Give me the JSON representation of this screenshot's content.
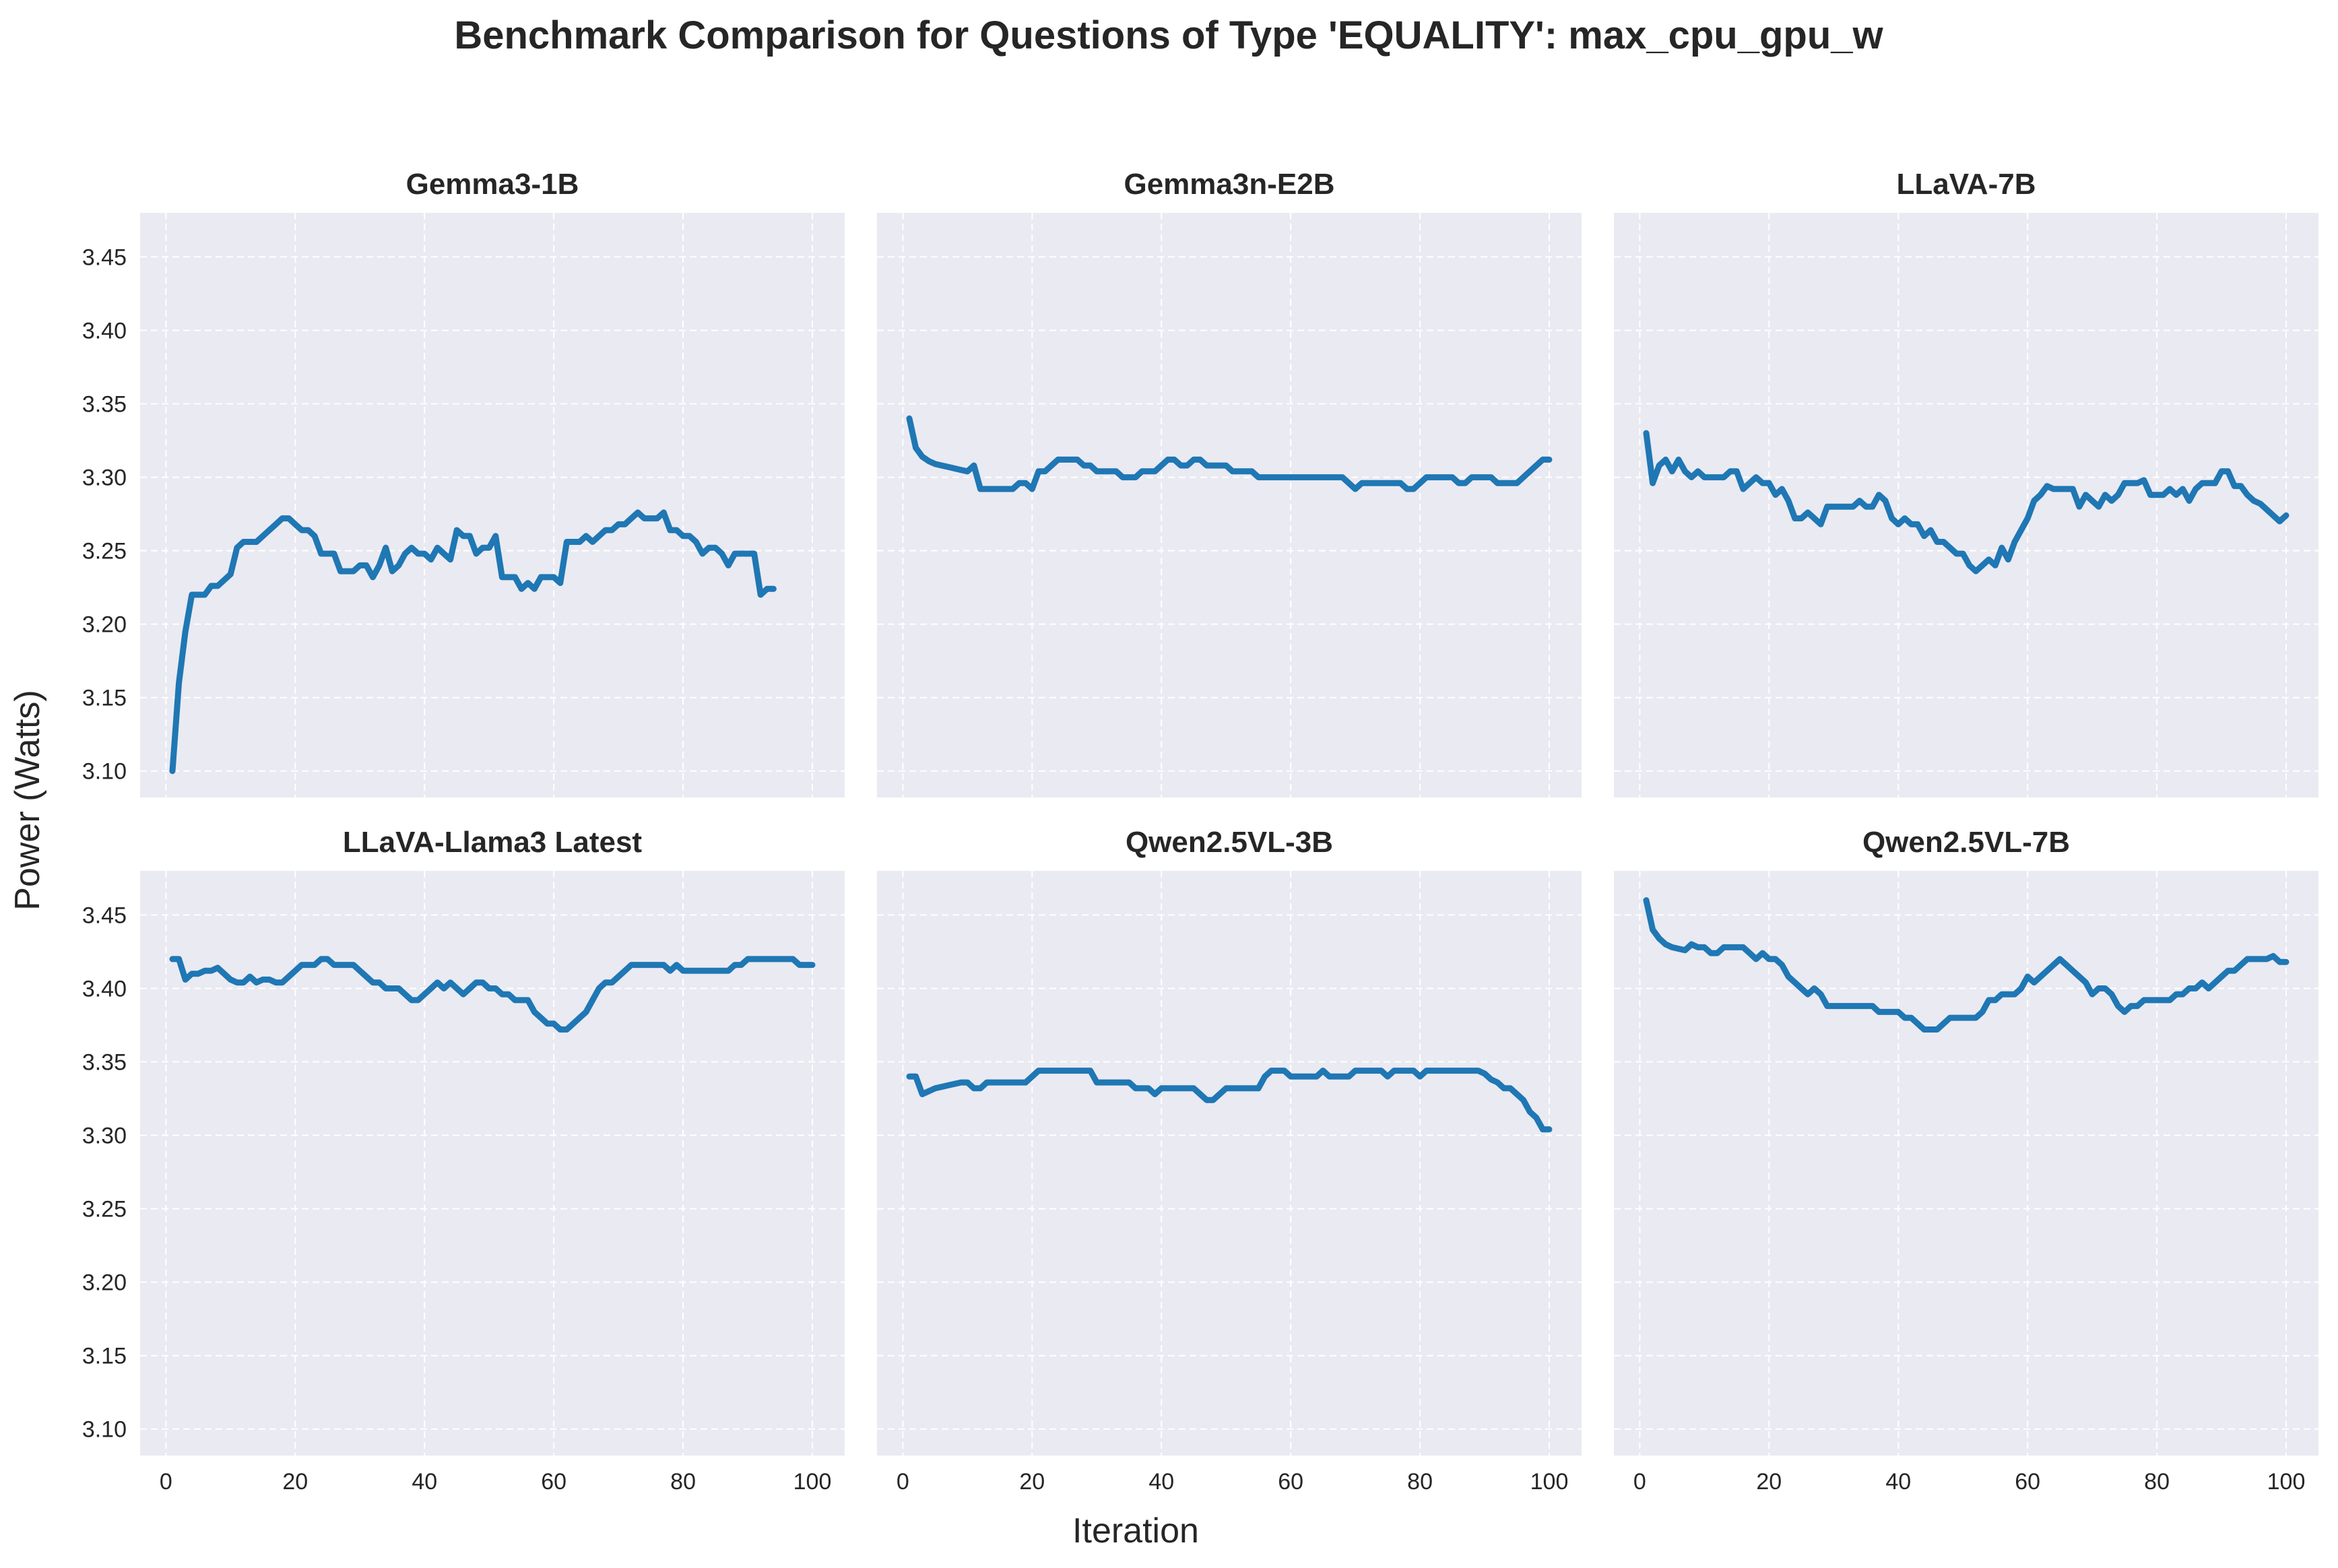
{
  "figure": {
    "title": "Benchmark Comparison for Questions of Type 'EQUALITY': max_cpu_gpu_w",
    "xlabel": "Iteration",
    "ylabel": "Power (Watts)"
  },
  "chart_data": {
    "type": "line",
    "shared_y": true,
    "shared_x": true,
    "ylim": [
      3.082,
      3.48
    ],
    "xlim": [
      -4,
      105
    ],
    "yticks": [
      "3.10",
      "3.15",
      "3.20",
      "3.25",
      "3.30",
      "3.35",
      "3.40",
      "3.45"
    ],
    "xticks": [
      "0",
      "20",
      "40",
      "60",
      "80",
      "100"
    ],
    "grid": true,
    "line_color": "#1f77b4",
    "panel_background": "#eaeaf2",
    "panels": [
      {
        "title": "Gemma3-1B",
        "x": [
          1,
          2,
          3,
          4,
          5,
          6,
          7,
          8,
          9,
          10,
          11,
          12,
          13,
          14,
          15,
          16,
          17,
          18,
          19,
          20,
          21,
          22,
          23,
          24,
          25,
          26,
          27,
          28,
          29,
          30,
          31,
          32,
          33,
          34,
          35,
          36,
          37,
          38,
          39,
          40,
          41,
          42,
          43,
          44,
          45,
          46,
          47,
          48,
          49,
          50,
          51,
          52,
          53,
          54,
          55,
          56,
          57,
          58,
          59,
          60,
          61,
          62,
          63,
          64,
          65,
          66,
          67,
          68,
          69,
          70,
          71,
          72,
          73,
          74,
          75,
          76,
          77,
          78,
          79,
          80,
          81,
          82,
          83,
          84,
          85,
          86,
          87,
          88,
          89,
          90,
          91,
          92,
          93,
          94
        ],
        "y": [
          3.1,
          3.16,
          3.195,
          3.22,
          3.22,
          3.22,
          3.226,
          3.226,
          3.23,
          3.234,
          3.252,
          3.256,
          3.256,
          3.256,
          3.26,
          3.264,
          3.268,
          3.272,
          3.272,
          3.268,
          3.264,
          3.264,
          3.26,
          3.248,
          3.248,
          3.248,
          3.236,
          3.236,
          3.236,
          3.24,
          3.24,
          3.232,
          3.24,
          3.252,
          3.236,
          3.24,
          3.248,
          3.252,
          3.248,
          3.248,
          3.244,
          3.252,
          3.248,
          3.244,
          3.264,
          3.26,
          3.26,
          3.248,
          3.252,
          3.252,
          3.26,
          3.232,
          3.232,
          3.232,
          3.224,
          3.228,
          3.224,
          3.232,
          3.232,
          3.232,
          3.228,
          3.256,
          3.256,
          3.256,
          3.26,
          3.256,
          3.26,
          3.264,
          3.264,
          3.268,
          3.268,
          3.272,
          3.276,
          3.272,
          3.272,
          3.272,
          3.276,
          3.264,
          3.264,
          3.26,
          3.26,
          3.256,
          3.248,
          3.252,
          3.252,
          3.248,
          3.24,
          3.248,
          3.248,
          3.248,
          3.248,
          3.22,
          3.224,
          3.224
        ]
      },
      {
        "title": "Gemma3n-E2B",
        "x": [
          1,
          2,
          3,
          4,
          5,
          6,
          7,
          8,
          9,
          10,
          11,
          12,
          13,
          14,
          15,
          16,
          17,
          18,
          19,
          20,
          21,
          22,
          23,
          24,
          25,
          26,
          27,
          28,
          29,
          30,
          31,
          32,
          33,
          34,
          35,
          36,
          37,
          38,
          39,
          40,
          41,
          42,
          43,
          44,
          45,
          46,
          47,
          48,
          49,
          50,
          51,
          52,
          53,
          54,
          55,
          56,
          57,
          58,
          59,
          60,
          61,
          62,
          63,
          64,
          65,
          66,
          67,
          68,
          69,
          70,
          71,
          72,
          73,
          74,
          75,
          76,
          77,
          78,
          79,
          80,
          81,
          82,
          83,
          84,
          85,
          86,
          87,
          88,
          89,
          90,
          91,
          92,
          93,
          94,
          95,
          96,
          97,
          98,
          99,
          100
        ],
        "y": [
          3.34,
          3.32,
          3.314,
          3.311,
          3.309,
          3.308,
          3.307,
          3.306,
          3.305,
          3.304,
          3.308,
          3.292,
          3.292,
          3.292,
          3.292,
          3.292,
          3.292,
          3.296,
          3.296,
          3.292,
          3.304,
          3.304,
          3.308,
          3.312,
          3.312,
          3.312,
          3.312,
          3.308,
          3.308,
          3.304,
          3.304,
          3.304,
          3.304,
          3.3,
          3.3,
          3.3,
          3.304,
          3.304,
          3.304,
          3.308,
          3.312,
          3.312,
          3.308,
          3.308,
          3.312,
          3.312,
          3.308,
          3.308,
          3.308,
          3.308,
          3.304,
          3.304,
          3.304,
          3.304,
          3.3,
          3.3,
          3.3,
          3.3,
          3.3,
          3.3,
          3.3,
          3.3,
          3.3,
          3.3,
          3.3,
          3.3,
          3.3,
          3.3,
          3.296,
          3.292,
          3.296,
          3.296,
          3.296,
          3.296,
          3.296,
          3.296,
          3.296,
          3.292,
          3.292,
          3.296,
          3.3,
          3.3,
          3.3,
          3.3,
          3.3,
          3.296,
          3.296,
          3.3,
          3.3,
          3.3,
          3.3,
          3.296,
          3.296,
          3.296,
          3.296,
          3.3,
          3.304,
          3.308,
          3.312,
          3.312
        ]
      },
      {
        "title": "LLaVA-7B",
        "x": [
          1,
          2,
          3,
          4,
          5,
          6,
          7,
          8,
          9,
          10,
          11,
          12,
          13,
          14,
          15,
          16,
          17,
          18,
          19,
          20,
          21,
          22,
          23,
          24,
          25,
          26,
          27,
          28,
          29,
          30,
          31,
          32,
          33,
          34,
          35,
          36,
          37,
          38,
          39,
          40,
          41,
          42,
          43,
          44,
          45,
          46,
          47,
          48,
          49,
          50,
          51,
          52,
          53,
          54,
          55,
          56,
          57,
          58,
          59,
          60,
          61,
          62,
          63,
          64,
          65,
          66,
          67,
          68,
          69,
          70,
          71,
          72,
          73,
          74,
          75,
          76,
          77,
          78,
          79,
          80,
          81,
          82,
          83,
          84,
          85,
          86,
          87,
          88,
          89,
          90,
          91,
          92,
          93,
          94,
          95,
          96,
          97,
          98,
          99,
          100
        ],
        "y": [
          3.33,
          3.296,
          3.308,
          3.312,
          3.304,
          3.312,
          3.304,
          3.3,
          3.304,
          3.3,
          3.3,
          3.3,
          3.3,
          3.304,
          3.304,
          3.292,
          3.296,
          3.3,
          3.296,
          3.296,
          3.288,
          3.292,
          3.284,
          3.272,
          3.272,
          3.276,
          3.272,
          3.268,
          3.28,
          3.28,
          3.28,
          3.28,
          3.28,
          3.284,
          3.28,
          3.28,
          3.288,
          3.284,
          3.272,
          3.268,
          3.272,
          3.268,
          3.268,
          3.26,
          3.264,
          3.256,
          3.256,
          3.252,
          3.248,
          3.248,
          3.24,
          3.236,
          3.24,
          3.244,
          3.24,
          3.252,
          3.244,
          3.256,
          3.264,
          3.272,
          3.284,
          3.288,
          3.294,
          3.292,
          3.292,
          3.292,
          3.292,
          3.28,
          3.288,
          3.284,
          3.28,
          3.288,
          3.284,
          3.288,
          3.296,
          3.296,
          3.296,
          3.298,
          3.288,
          3.288,
          3.288,
          3.292,
          3.288,
          3.292,
          3.284,
          3.292,
          3.296,
          3.296,
          3.296,
          3.304,
          3.304,
          3.294,
          3.294,
          3.288,
          3.284,
          3.282,
          3.278,
          3.274,
          3.27,
          3.274
        ]
      },
      {
        "title": "LLaVA-Llama3 Latest",
        "x": [
          1,
          2,
          3,
          4,
          5,
          6,
          7,
          8,
          9,
          10,
          11,
          12,
          13,
          14,
          15,
          16,
          17,
          18,
          19,
          20,
          21,
          22,
          23,
          24,
          25,
          26,
          27,
          28,
          29,
          30,
          31,
          32,
          33,
          34,
          35,
          36,
          37,
          38,
          39,
          40,
          41,
          42,
          43,
          44,
          45,
          46,
          47,
          48,
          49,
          50,
          51,
          52,
          53,
          54,
          55,
          56,
          57,
          58,
          59,
          60,
          61,
          62,
          63,
          64,
          65,
          66,
          67,
          68,
          69,
          70,
          71,
          72,
          73,
          74,
          75,
          76,
          77,
          78,
          79,
          80,
          81,
          82,
          83,
          84,
          85,
          86,
          87,
          88,
          89,
          90,
          91,
          92,
          93,
          94,
          95,
          96,
          97,
          98,
          99,
          100
        ],
        "y": [
          3.42,
          3.42,
          3.406,
          3.41,
          3.41,
          3.412,
          3.412,
          3.414,
          3.41,
          3.406,
          3.404,
          3.404,
          3.408,
          3.404,
          3.406,
          3.406,
          3.404,
          3.404,
          3.408,
          3.412,
          3.416,
          3.416,
          3.416,
          3.42,
          3.42,
          3.416,
          3.416,
          3.416,
          3.416,
          3.412,
          3.408,
          3.404,
          3.404,
          3.4,
          3.4,
          3.4,
          3.396,
          3.392,
          3.392,
          3.396,
          3.4,
          3.404,
          3.4,
          3.404,
          3.4,
          3.396,
          3.4,
          3.404,
          3.404,
          3.4,
          3.4,
          3.396,
          3.396,
          3.392,
          3.392,
          3.392,
          3.384,
          3.38,
          3.376,
          3.376,
          3.372,
          3.372,
          3.376,
          3.38,
          3.384,
          3.392,
          3.4,
          3.404,
          3.404,
          3.408,
          3.412,
          3.416,
          3.416,
          3.416,
          3.416,
          3.416,
          3.416,
          3.412,
          3.416,
          3.412,
          3.412,
          3.412,
          3.412,
          3.412,
          3.412,
          3.412,
          3.412,
          3.416,
          3.416,
          3.42,
          3.42,
          3.42,
          3.42,
          3.42,
          3.42,
          3.42,
          3.42,
          3.416,
          3.416,
          3.416
        ]
      },
      {
        "title": "Qwen2.5VL-3B",
        "x": [
          1,
          2,
          3,
          4,
          5,
          6,
          7,
          8,
          9,
          10,
          11,
          12,
          13,
          14,
          15,
          16,
          17,
          18,
          19,
          20,
          21,
          22,
          23,
          24,
          25,
          26,
          27,
          28,
          29,
          30,
          31,
          32,
          33,
          34,
          35,
          36,
          37,
          38,
          39,
          40,
          41,
          42,
          43,
          44,
          45,
          46,
          47,
          48,
          49,
          50,
          51,
          52,
          53,
          54,
          55,
          56,
          57,
          58,
          59,
          60,
          61,
          62,
          63,
          64,
          65,
          66,
          67,
          68,
          69,
          70,
          71,
          72,
          73,
          74,
          75,
          76,
          77,
          78,
          79,
          80,
          81,
          82,
          83,
          84,
          85,
          86,
          87,
          88,
          89,
          90,
          91,
          92,
          93,
          94,
          95,
          96,
          97,
          98,
          99,
          100
        ],
        "y": [
          3.34,
          3.34,
          3.328,
          3.33,
          3.332,
          3.333,
          3.334,
          3.335,
          3.336,
          3.336,
          3.332,
          3.332,
          3.336,
          3.336,
          3.336,
          3.336,
          3.336,
          3.336,
          3.336,
          3.34,
          3.344,
          3.344,
          3.344,
          3.344,
          3.344,
          3.344,
          3.344,
          3.344,
          3.344,
          3.336,
          3.336,
          3.336,
          3.336,
          3.336,
          3.336,
          3.332,
          3.332,
          3.332,
          3.328,
          3.332,
          3.332,
          3.332,
          3.332,
          3.332,
          3.332,
          3.328,
          3.324,
          3.324,
          3.328,
          3.332,
          3.332,
          3.332,
          3.332,
          3.332,
          3.332,
          3.34,
          3.344,
          3.344,
          3.344,
          3.34,
          3.34,
          3.34,
          3.34,
          3.34,
          3.344,
          3.34,
          3.34,
          3.34,
          3.34,
          3.344,
          3.344,
          3.344,
          3.344,
          3.344,
          3.34,
          3.344,
          3.344,
          3.344,
          3.344,
          3.34,
          3.344,
          3.344,
          3.344,
          3.344,
          3.344,
          3.344,
          3.344,
          3.344,
          3.344,
          3.342,
          3.338,
          3.336,
          3.332,
          3.332,
          3.328,
          3.324,
          3.316,
          3.312,
          3.304,
          3.304
        ]
      },
      {
        "title": "Qwen2.5VL-7B",
        "x": [
          1,
          2,
          3,
          4,
          5,
          6,
          7,
          8,
          9,
          10,
          11,
          12,
          13,
          14,
          15,
          16,
          17,
          18,
          19,
          20,
          21,
          22,
          23,
          24,
          25,
          26,
          27,
          28,
          29,
          30,
          31,
          32,
          33,
          34,
          35,
          36,
          37,
          38,
          39,
          40,
          41,
          42,
          43,
          44,
          45,
          46,
          47,
          48,
          49,
          50,
          51,
          52,
          53,
          54,
          55,
          56,
          57,
          58,
          59,
          60,
          61,
          62,
          63,
          64,
          65,
          66,
          67,
          68,
          69,
          70,
          71,
          72,
          73,
          74,
          75,
          76,
          77,
          78,
          79,
          80,
          81,
          82,
          83,
          84,
          85,
          86,
          87,
          88,
          89,
          90,
          91,
          92,
          93,
          94,
          95,
          96,
          97,
          98,
          99,
          100
        ],
        "y": [
          3.46,
          3.44,
          3.434,
          3.43,
          3.428,
          3.427,
          3.426,
          3.43,
          3.428,
          3.428,
          3.424,
          3.424,
          3.428,
          3.428,
          3.428,
          3.428,
          3.424,
          3.42,
          3.424,
          3.42,
          3.42,
          3.416,
          3.408,
          3.404,
          3.4,
          3.396,
          3.4,
          3.396,
          3.388,
          3.388,
          3.388,
          3.388,
          3.388,
          3.388,
          3.388,
          3.388,
          3.384,
          3.384,
          3.384,
          3.384,
          3.38,
          3.38,
          3.376,
          3.372,
          3.372,
          3.372,
          3.376,
          3.38,
          3.38,
          3.38,
          3.38,
          3.38,
          3.384,
          3.392,
          3.392,
          3.396,
          3.396,
          3.396,
          3.4,
          3.408,
          3.404,
          3.408,
          3.412,
          3.416,
          3.42,
          3.416,
          3.412,
          3.408,
          3.404,
          3.396,
          3.4,
          3.4,
          3.396,
          3.388,
          3.384,
          3.388,
          3.388,
          3.392,
          3.392,
          3.392,
          3.392,
          3.392,
          3.396,
          3.396,
          3.4,
          3.4,
          3.404,
          3.4,
          3.404,
          3.408,
          3.412,
          3.412,
          3.416,
          3.42,
          3.42,
          3.42,
          3.42,
          3.422,
          3.418,
          3.418
        ]
      }
    ]
  }
}
